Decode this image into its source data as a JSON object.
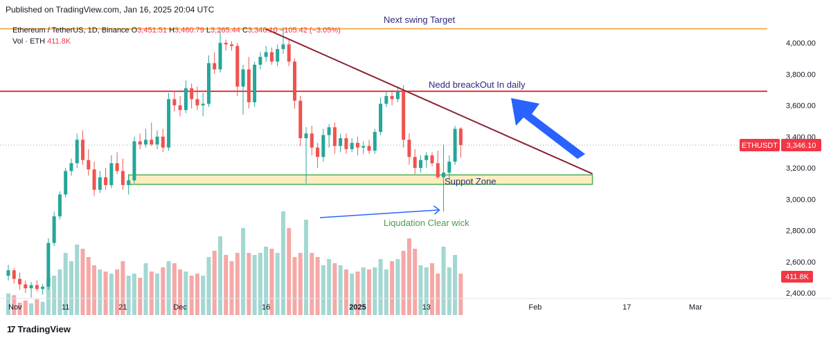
{
  "header": {
    "published": "Published on TradingView.com, Jan 16, 2025 20:04 UTC"
  },
  "legend": {
    "symbol": "Ethereum / TetherUS, 1D, Binance",
    "open_label": "O",
    "open": "3,451.51",
    "high_label": "H",
    "high": "3,460.79",
    "low_label": "L",
    "low": "3,265.44",
    "close_label": "C",
    "close": "3,346.10",
    "change": "−105.42 (−3.05%)",
    "volume_label": "Vol · ETH",
    "volume": "411.8K"
  },
  "branding": {
    "name": "TradingView",
    "logo": "17"
  },
  "colors": {
    "up": "#26a69a",
    "down": "#ef5350",
    "vol_up": "#a3d7d2",
    "vol_down": "#f5a8a6",
    "resistance": "#e0323e",
    "swing_target": "#f6b150",
    "trendline": "#8b2230",
    "support_fill": "#fdeec0",
    "support_border": "#4caf50",
    "annotation_blue": "#2962ff",
    "text_navy": "#2a2a80",
    "text_green": "#43a047",
    "label_bg": "#f23645"
  },
  "chart_data": {
    "type": "candlestick",
    "title": "Ethereum / TetherUS, 1D, Binance",
    "ylim": [
      2360,
      4140
    ],
    "yticks": [
      "4,000.00",
      "3,800.00",
      "3,600.00",
      "3,400.00",
      "3,200.00",
      "3,000.00",
      "2,800.00",
      "2,600.00",
      "2,400.00"
    ],
    "ytick_values": [
      4000,
      3800,
      3600,
      3400,
      3200,
      3000,
      2800,
      2600,
      2400
    ],
    "xticks": [
      {
        "label": "Nov",
        "day": 0
      },
      {
        "label": "11",
        "day": 10
      },
      {
        "label": "21",
        "day": 20
      },
      {
        "label": "Dec",
        "day": 30
      },
      {
        "label": "16",
        "day": 45
      },
      {
        "label": "2025",
        "day": 61
      },
      {
        "label": "13",
        "day": 73
      },
      {
        "label": "Feb",
        "day": 92
      },
      {
        "label": "17",
        "day": 108
      },
      {
        "label": "Mar",
        "day": 120
      }
    ],
    "x_domain_days": [
      -1,
      133
    ],
    "candles": [
      {
        "o": 2510,
        "h": 2580,
        "l": 2480,
        "c": 2545
      },
      {
        "o": 2545,
        "h": 2560,
        "l": 2460,
        "c": 2490
      },
      {
        "o": 2490,
        "h": 2530,
        "l": 2420,
        "c": 2455
      },
      {
        "o": 2455,
        "h": 2480,
        "l": 2400,
        "c": 2430
      },
      {
        "o": 2430,
        "h": 2470,
        "l": 2370,
        "c": 2450
      },
      {
        "o": 2450,
        "h": 2480,
        "l": 2410,
        "c": 2425
      },
      {
        "o": 2425,
        "h": 2455,
        "l": 2390,
        "c": 2440
      },
      {
        "o": 2440,
        "h": 2750,
        "l": 2420,
        "c": 2720
      },
      {
        "o": 2720,
        "h": 2920,
        "l": 2700,
        "c": 2890
      },
      {
        "o": 2890,
        "h": 3050,
        "l": 2870,
        "c": 3030
      },
      {
        "o": 3030,
        "h": 3200,
        "l": 3010,
        "c": 3180
      },
      {
        "o": 3180,
        "h": 3260,
        "l": 3150,
        "c": 3230
      },
      {
        "o": 3230,
        "h": 3420,
        "l": 3200,
        "c": 3380
      },
      {
        "o": 3380,
        "h": 3440,
        "l": 3220,
        "c": 3250
      },
      {
        "o": 3250,
        "h": 3320,
        "l": 3150,
        "c": 3190
      },
      {
        "o": 3190,
        "h": 3240,
        "l": 3020,
        "c": 3060
      },
      {
        "o": 3060,
        "h": 3180,
        "l": 3040,
        "c": 3140
      },
      {
        "o": 3140,
        "h": 3200,
        "l": 3060,
        "c": 3090
      },
      {
        "o": 3090,
        "h": 3280,
        "l": 3070,
        "c": 3230
      },
      {
        "o": 3230,
        "h": 3300,
        "l": 3160,
        "c": 3180
      },
      {
        "o": 3180,
        "h": 3260,
        "l": 3060,
        "c": 3090
      },
      {
        "o": 3090,
        "h": 3150,
        "l": 3030,
        "c": 3120
      },
      {
        "o": 3120,
        "h": 3400,
        "l": 3100,
        "c": 3370
      },
      {
        "o": 3370,
        "h": 3420,
        "l": 3320,
        "c": 3350
      },
      {
        "o": 3350,
        "h": 3450,
        "l": 3330,
        "c": 3380
      },
      {
        "o": 3380,
        "h": 3490,
        "l": 3340,
        "c": 3350
      },
      {
        "o": 3350,
        "h": 3440,
        "l": 3320,
        "c": 3400
      },
      {
        "o": 3400,
        "h": 3450,
        "l": 3300,
        "c": 3330
      },
      {
        "o": 3330,
        "h": 3680,
        "l": 3310,
        "c": 3640
      },
      {
        "o": 3640,
        "h": 3690,
        "l": 3560,
        "c": 3600
      },
      {
        "o": 3600,
        "h": 3660,
        "l": 3530,
        "c": 3570
      },
      {
        "o": 3570,
        "h": 3760,
        "l": 3550,
        "c": 3710
      },
      {
        "o": 3710,
        "h": 3740,
        "l": 3580,
        "c": 3640
      },
      {
        "o": 3640,
        "h": 3720,
        "l": 3570,
        "c": 3600
      },
      {
        "o": 3600,
        "h": 3680,
        "l": 3530,
        "c": 3610
      },
      {
        "o": 3610,
        "h": 3920,
        "l": 3590,
        "c": 3870
      },
      {
        "o": 3870,
        "h": 3940,
        "l": 3800,
        "c": 3830
      },
      {
        "o": 3830,
        "h": 4080,
        "l": 3810,
        "c": 4000
      },
      {
        "o": 4000,
        "h": 4020,
        "l": 3950,
        "c": 3990
      },
      {
        "o": 3990,
        "h": 4010,
        "l": 3950,
        "c": 3980
      },
      {
        "o": 3980,
        "h": 4000,
        "l": 3660,
        "c": 3720
      },
      {
        "o": 3720,
        "h": 3860,
        "l": 3540,
        "c": 3830
      },
      {
        "o": 3830,
        "h": 3910,
        "l": 3580,
        "c": 3620
      },
      {
        "o": 3620,
        "h": 3880,
        "l": 3590,
        "c": 3860
      },
      {
        "o": 3860,
        "h": 3940,
        "l": 3830,
        "c": 3910
      },
      {
        "o": 3910,
        "h": 3980,
        "l": 3880,
        "c": 3940
      },
      {
        "o": 3940,
        "h": 3970,
        "l": 3860,
        "c": 3880
      },
      {
        "o": 3880,
        "h": 3990,
        "l": 3850,
        "c": 3960
      },
      {
        "o": 3960,
        "h": 4100,
        "l": 3930,
        "c": 3990
      },
      {
        "o": 3990,
        "h": 4020,
        "l": 3850,
        "c": 3880
      },
      {
        "o": 3880,
        "h": 3900,
        "l": 3580,
        "c": 3630
      },
      {
        "o": 3630,
        "h": 3660,
        "l": 3340,
        "c": 3390
      },
      {
        "o": 3390,
        "h": 3460,
        "l": 3100,
        "c": 3420
      },
      {
        "o": 3420,
        "h": 3470,
        "l": 3280,
        "c": 3330
      },
      {
        "o": 3330,
        "h": 3360,
        "l": 3200,
        "c": 3270
      },
      {
        "o": 3270,
        "h": 3450,
        "l": 3240,
        "c": 3410
      },
      {
        "o": 3410,
        "h": 3480,
        "l": 3330,
        "c": 3460
      },
      {
        "o": 3460,
        "h": 3490,
        "l": 3290,
        "c": 3340
      },
      {
        "o": 3340,
        "h": 3420,
        "l": 3300,
        "c": 3390
      },
      {
        "o": 3390,
        "h": 3420,
        "l": 3290,
        "c": 3320
      },
      {
        "o": 3320,
        "h": 3390,
        "l": 3300,
        "c": 3360
      },
      {
        "o": 3360,
        "h": 3400,
        "l": 3280,
        "c": 3330
      },
      {
        "o": 3330,
        "h": 3370,
        "l": 3290,
        "c": 3340
      },
      {
        "o": 3340,
        "h": 3380,
        "l": 3290,
        "c": 3310
      },
      {
        "o": 3310,
        "h": 3450,
        "l": 3290,
        "c": 3430
      },
      {
        "o": 3430,
        "h": 3650,
        "l": 3410,
        "c": 3610
      },
      {
        "o": 3610,
        "h": 3690,
        "l": 3590,
        "c": 3660
      },
      {
        "o": 3660,
        "h": 3700,
        "l": 3600,
        "c": 3640
      },
      {
        "o": 3640,
        "h": 3720,
        "l": 3620,
        "c": 3690
      },
      {
        "o": 3690,
        "h": 3730,
        "l": 3330,
        "c": 3380
      },
      {
        "o": 3380,
        "h": 3420,
        "l": 3220,
        "c": 3270
      },
      {
        "o": 3270,
        "h": 3320,
        "l": 3160,
        "c": 3200
      },
      {
        "o": 3200,
        "h": 3280,
        "l": 3170,
        "c": 3250
      },
      {
        "o": 3250,
        "h": 3300,
        "l": 3200,
        "c": 3280
      },
      {
        "o": 3280,
        "h": 3300,
        "l": 3210,
        "c": 3230
      },
      {
        "o": 3230,
        "h": 3310,
        "l": 3130,
        "c": 3140
      },
      {
        "o": 3140,
        "h": 3350,
        "l": 2920,
        "c": 3170
      },
      {
        "o": 3170,
        "h": 3280,
        "l": 3130,
        "c": 3240
      },
      {
        "o": 3240,
        "h": 3470,
        "l": 3220,
        "c": 3450
      },
      {
        "o": 3451.51,
        "h": 3460.79,
        "l": 3265.44,
        "c": 3346.1
      }
    ],
    "volume_heights": [
      52,
      48,
      30,
      35,
      28,
      38,
      32,
      90,
      95,
      110,
      150,
      130,
      170,
      160,
      140,
      120,
      110,
      105,
      100,
      110,
      130,
      95,
      100,
      90,
      125,
      105,
      100,
      115,
      130,
      125,
      110,
      105,
      95,
      100,
      95,
      140,
      155,
      190,
      145,
      130,
      150,
      210,
      150,
      145,
      150,
      165,
      160,
      150,
      250,
      210,
      140,
      150,
      230,
      150,
      140,
      120,
      135,
      125,
      120,
      110,
      100,
      105,
      115,
      110,
      115,
      135,
      110,
      130,
      135,
      155,
      185,
      160,
      120,
      115,
      125,
      100,
      165,
      115,
      145,
      100
    ],
    "volume_unit": "ETH",
    "current_price": 3346.1,
    "current_price_label": "3,346.10",
    "current_volume_label": "411.8K",
    "symbol_tag": "ETHUSDT",
    "levels": {
      "resistance": 3690,
      "swing_target": 4090,
      "support_zone": [
        3095,
        3155
      ]
    },
    "trendline": {
      "start_day": 45,
      "start_price": 4088,
      "end_day": 102,
      "end_price": 3162
    },
    "support_zone_days": [
      21,
      102
    ],
    "annotations": {
      "swing_target": "Next swing Target",
      "breakout": "Nedd breackOut In daily",
      "support": "Suppot Zone",
      "wick": "Liqudation Clear wick"
    }
  }
}
